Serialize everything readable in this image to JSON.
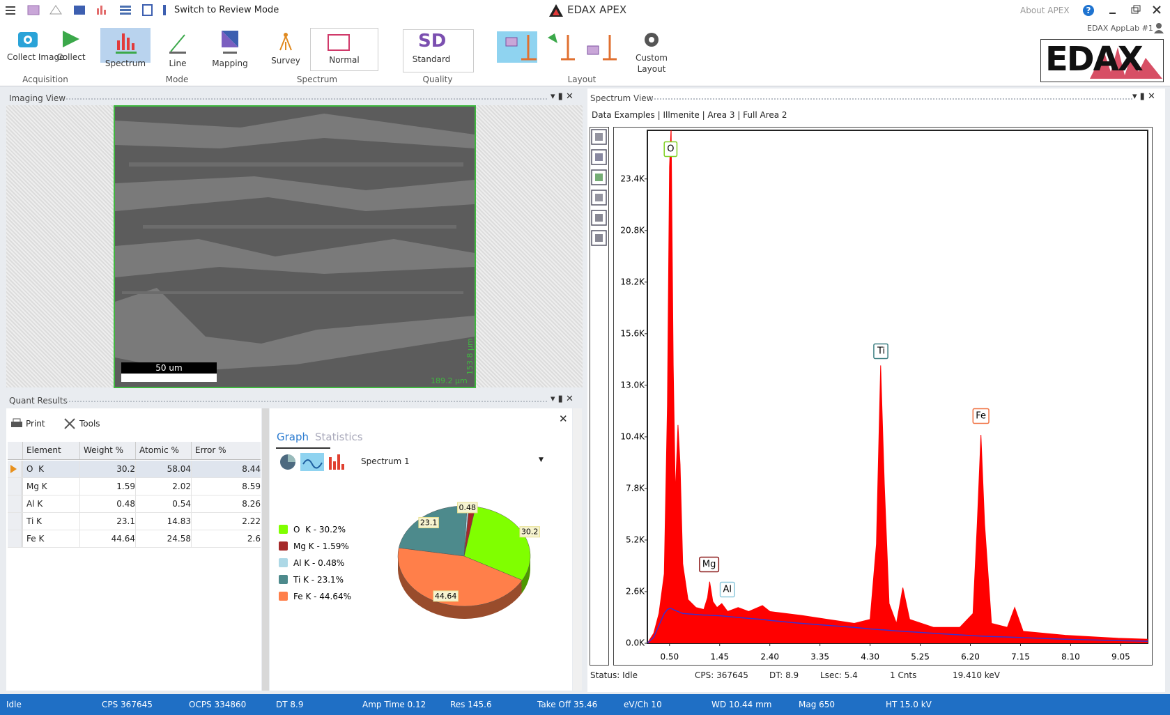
{
  "titlebar": {
    "quick_action": "Switch to Review Mode",
    "app_title": "EDAX APEX",
    "about": "About APEX",
    "user": "EDAX AppLab #1"
  },
  "ribbon": {
    "collect_image": "Collect Image",
    "collect": "Collect",
    "acquisition": "Acquisition",
    "spectrum": "Spectrum",
    "line": "Line",
    "mapping": "Mapping",
    "mode": "Mode",
    "survey": "Survey",
    "normal": "Normal",
    "spectrum_group": "Spectrum",
    "sd": "SD",
    "standard": "Standard",
    "quality": "Quality",
    "layout": "Layout",
    "custom_layout": "Custom Layout",
    "logo": "EDAX"
  },
  "imaging_view": {
    "title": "Imaging View",
    "scale_bar": "50 um",
    "height": "153.8 µm",
    "width": "189.2 µm"
  },
  "quant_results": {
    "title": "Quant Results",
    "print": "Print",
    "tools": "Tools",
    "table": {
      "columns": [
        "Element",
        "Weight %",
        "Atomic %",
        "Error %"
      ],
      "rows": [
        [
          "O  K",
          "30.2",
          "58.04",
          "8.44"
        ],
        [
          "Mg K",
          "1.59",
          "2.02",
          "8.59"
        ],
        [
          "Al K",
          "0.48",
          "0.54",
          "8.26"
        ],
        [
          "Ti K",
          "23.1",
          "14.83",
          "2.22"
        ],
        [
          "Fe K",
          "44.64",
          "24.58",
          "2.6"
        ]
      ]
    },
    "tabs": [
      "Graph",
      "Statistics"
    ],
    "spectrum_select": "Spectrum 1",
    "pie": {
      "type": "pie",
      "values": [
        30.2,
        1.59,
        0.48,
        23.1,
        44.64
      ],
      "value_labels": [
        "30.2",
        null,
        "0.48",
        "23.1",
        "44.64"
      ],
      "colors": [
        "#80ff00",
        "#a52a2a",
        "#add8e6",
        "#4d8a8c",
        "#ff7f4a"
      ],
      "legend": [
        "O  K - 30.2%",
        "Mg K - 1.59%",
        "Al K - 0.48%",
        "Ti K - 23.1%",
        "Fe K - 44.64%"
      ]
    }
  },
  "spectrum_view": {
    "title": "Spectrum View",
    "breadcrumb": "Data Examples | Illmenite | Area 3 | Full Area 2",
    "type": "area",
    "x": [
      0.08,
      0.2,
      0.3,
      0.4,
      0.46,
      0.5,
      0.53,
      0.57,
      0.61,
      0.66,
      0.7,
      0.75,
      0.85,
      1.0,
      1.15,
      1.22,
      1.26,
      1.32,
      1.4,
      1.49,
      1.6,
      1.8,
      2.0,
      2.26,
      2.4,
      3.0,
      3.5,
      4.0,
      4.3,
      4.42,
      4.5,
      4.57,
      4.66,
      4.8,
      4.92,
      5.05,
      5.5,
      6.0,
      6.25,
      6.33,
      6.4,
      6.47,
      6.6,
      6.9,
      7.04,
      7.2,
      8.0,
      9.0,
      9.56
    ],
    "counts": [
      0,
      500,
      1500,
      3500,
      12000,
      24000,
      26000,
      14000,
      7500,
      11000,
      9000,
      4000,
      2200,
      1800,
      1700,
      2300,
      3100,
      2100,
      1800,
      2000,
      1600,
      1800,
      1600,
      1900,
      1600,
      1400,
      1200,
      1000,
      1200,
      5000,
      14000,
      8000,
      2000,
      1000,
      2800,
      1200,
      800,
      800,
      1500,
      6000,
      10500,
      6000,
      1000,
      800,
      1800,
      600,
      400,
      250,
      200
    ],
    "background": [
      0,
      300,
      900,
      1500,
      1700,
      1750,
      1750,
      1700,
      1650,
      1600,
      1550,
      1500,
      1480,
      1450,
      1420,
      1420,
      1410,
      1400,
      1390,
      1380,
      1350,
      1300,
      1250,
      1200,
      1150,
      1000,
      900,
      800,
      720,
      700,
      680,
      670,
      650,
      620,
      600,
      580,
      500,
      420,
      380,
      370,
      360,
      350,
      340,
      310,
      300,
      280,
      200,
      130,
      100
    ],
    "colors": {
      "counts": "#ff0000",
      "background": "#3b2fd0"
    },
    "xlim": [
      0.08,
      9.56
    ],
    "ylim": [
      0,
      25850
    ],
    "xticks": [
      {
        "value": 0.5,
        "label": "0.50"
      },
      {
        "value": 1.45,
        "label": "1.45"
      },
      {
        "value": 2.4,
        "label": "2.40"
      },
      {
        "value": 3.35,
        "label": "3.35"
      },
      {
        "value": 4.3,
        "label": "4.30"
      },
      {
        "value": 5.25,
        "label": "5.25"
      },
      {
        "value": 6.2,
        "label": "6.20"
      },
      {
        "value": 7.15,
        "label": "7.15"
      },
      {
        "value": 8.1,
        "label": "8.10"
      },
      {
        "value": 9.05,
        "label": "9.05"
      }
    ],
    "yticks": [
      {
        "value": 0,
        "label": "0.0K"
      },
      {
        "value": 2600,
        "label": "2.6K"
      },
      {
        "value": 5200,
        "label": "5.2K"
      },
      {
        "value": 7800,
        "label": "7.8K"
      },
      {
        "value": 10400,
        "label": "10.4K"
      },
      {
        "value": 13000,
        "label": "13.0K"
      },
      {
        "value": 15600,
        "label": "15.6K"
      },
      {
        "value": 18200,
        "label": "18.2K"
      },
      {
        "value": 20800,
        "label": "20.8K"
      },
      {
        "value": 23400,
        "label": "23.4K"
      }
    ],
    "peaks": [
      {
        "label": "O",
        "energy": 0.52,
        "color": "#7fd020"
      },
      {
        "label": "Mg",
        "energy": 1.25,
        "color": "#8b1a1a"
      },
      {
        "label": "Al",
        "energy": 1.49,
        "color": "#8cc8dc"
      },
      {
        "label": "Ti",
        "energy": 4.51,
        "color": "#3d7f82"
      },
      {
        "label": "Fe",
        "energy": 6.4,
        "color": "#f07040"
      }
    ],
    "status": [
      "Status: Idle",
      "CPS: 367645",
      "DT: 8.9",
      "Lsec: 5.4",
      "1 Cnts",
      "19.410 keV"
    ]
  },
  "status_bar": [
    "Idle",
    "CPS 367645",
    "OCPS 334860",
    "DT 8.9",
    "Amp Time 0.12",
    "Res 145.6",
    "Take Off 35.46",
    "eV/Ch 10",
    "WD 10.44 mm",
    "Mag 650",
    "HT 15.0 kV"
  ]
}
